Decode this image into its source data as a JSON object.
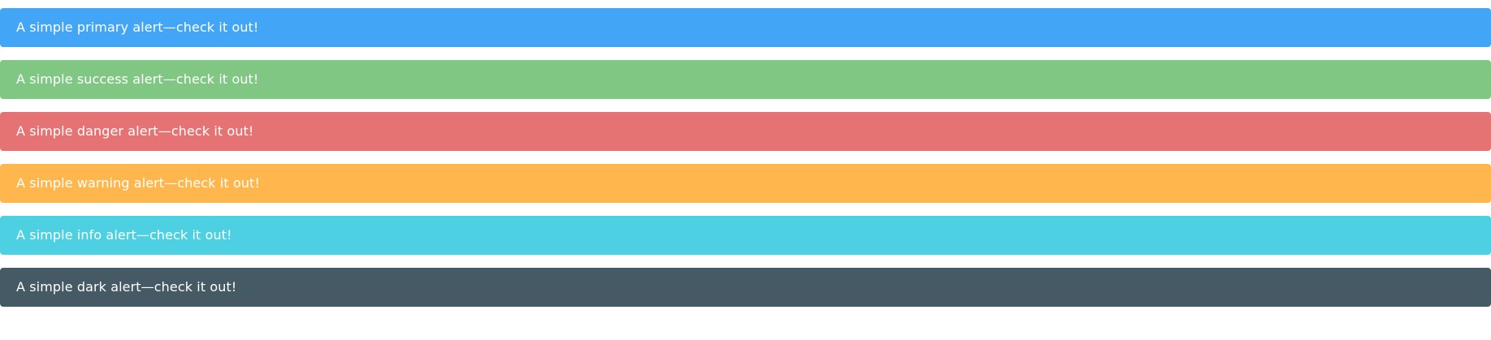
{
  "alerts": [
    {
      "variant": "primary",
      "text": "A simple primary alert—check it out!",
      "color": "#42a5f5"
    },
    {
      "variant": "success",
      "text": "A simple success alert—check it out!",
      "color": "#81c784"
    },
    {
      "variant": "danger",
      "text": "A simple danger alert—check it out!",
      "color": "#e57373"
    },
    {
      "variant": "warning",
      "text": "A simple warning alert—check it out!",
      "color": "#ffb74d"
    },
    {
      "variant": "info",
      "text": "A simple info alert—check it out!",
      "color": "#4dd0e1"
    },
    {
      "variant": "dark",
      "text": "A simple dark alert—check it out!",
      "color": "#455a64"
    }
  ],
  "theme": {
    "text_color": "#ffffff",
    "background": "#ffffff"
  }
}
